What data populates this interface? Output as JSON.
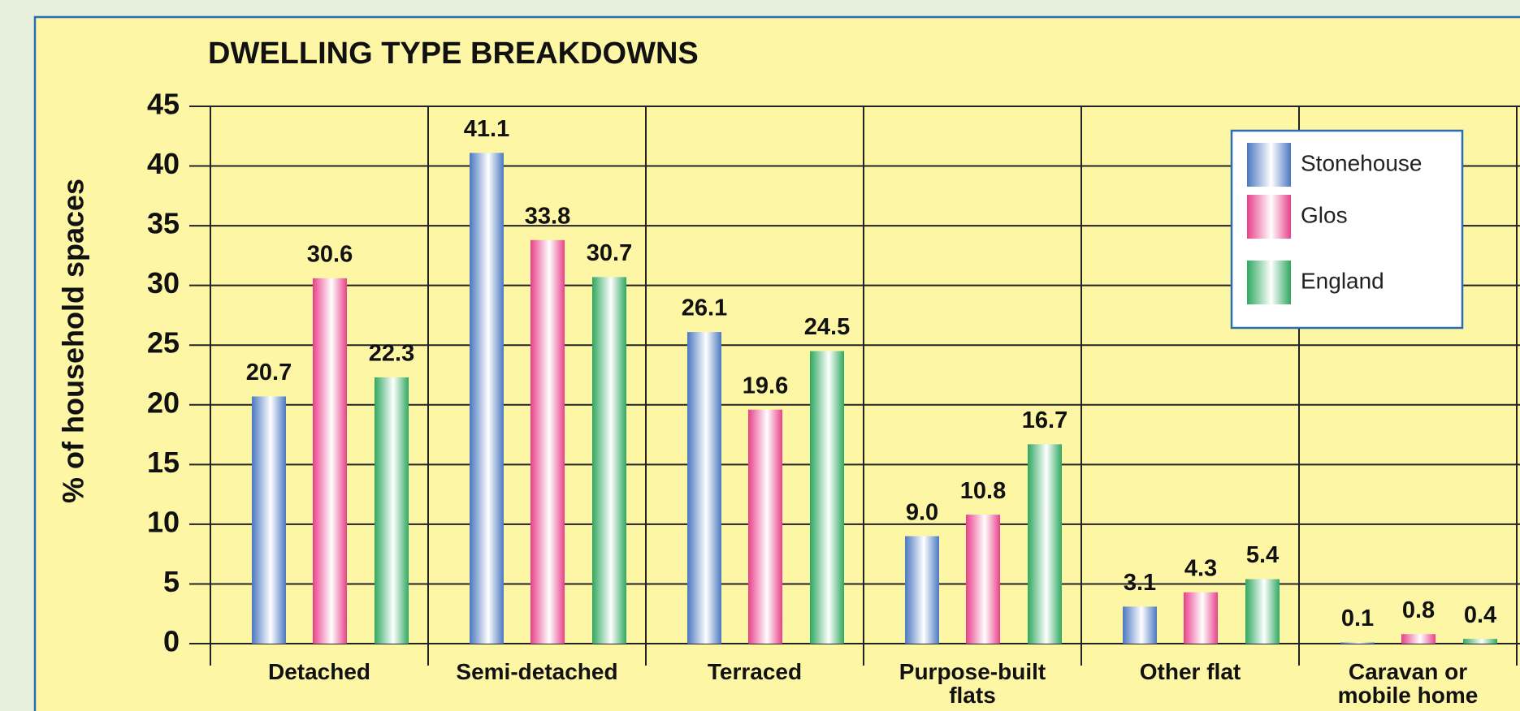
{
  "chart_data": {
    "type": "bar",
    "title": "DWELLING TYPE BREAKDOWNS",
    "y_label": "% of household spaces",
    "categories": [
      "Detached",
      "Semi-detached",
      "Terraced",
      "Purpose-built flats",
      "Other flat",
      "Caravan or mobile home"
    ],
    "series": [
      {
        "name": "Stonehouse",
        "color": "#4a78c0",
        "values": [
          20.7,
          41.1,
          26.1,
          9.0,
          3.1,
          0.1
        ],
        "value_labels": [
          "20.7",
          "41.1",
          "26.1",
          "9.0",
          "3.1",
          "0.1"
        ]
      },
      {
        "name": "Glos",
        "color": "#e8408a",
        "values": [
          30.6,
          33.8,
          19.6,
          10.8,
          4.3,
          0.8
        ],
        "value_labels": [
          "30.6",
          "33.8",
          "19.6",
          "10.8",
          "4.3",
          "0.8"
        ]
      },
      {
        "name": "England",
        "color": "#2ea860",
        "values": [
          22.3,
          30.7,
          24.5,
          16.7,
          5.4,
          0.4
        ],
        "value_labels": [
          "22.3",
          "30.7",
          "24.5",
          "16.7",
          "5.4",
          "0.4"
        ]
      }
    ],
    "ylim": [
      0,
      45
    ],
    "yticks": [
      0,
      5,
      10,
      15,
      20,
      25,
      30,
      35,
      40,
      45
    ],
    "grid": true,
    "legend": "upper right"
  }
}
